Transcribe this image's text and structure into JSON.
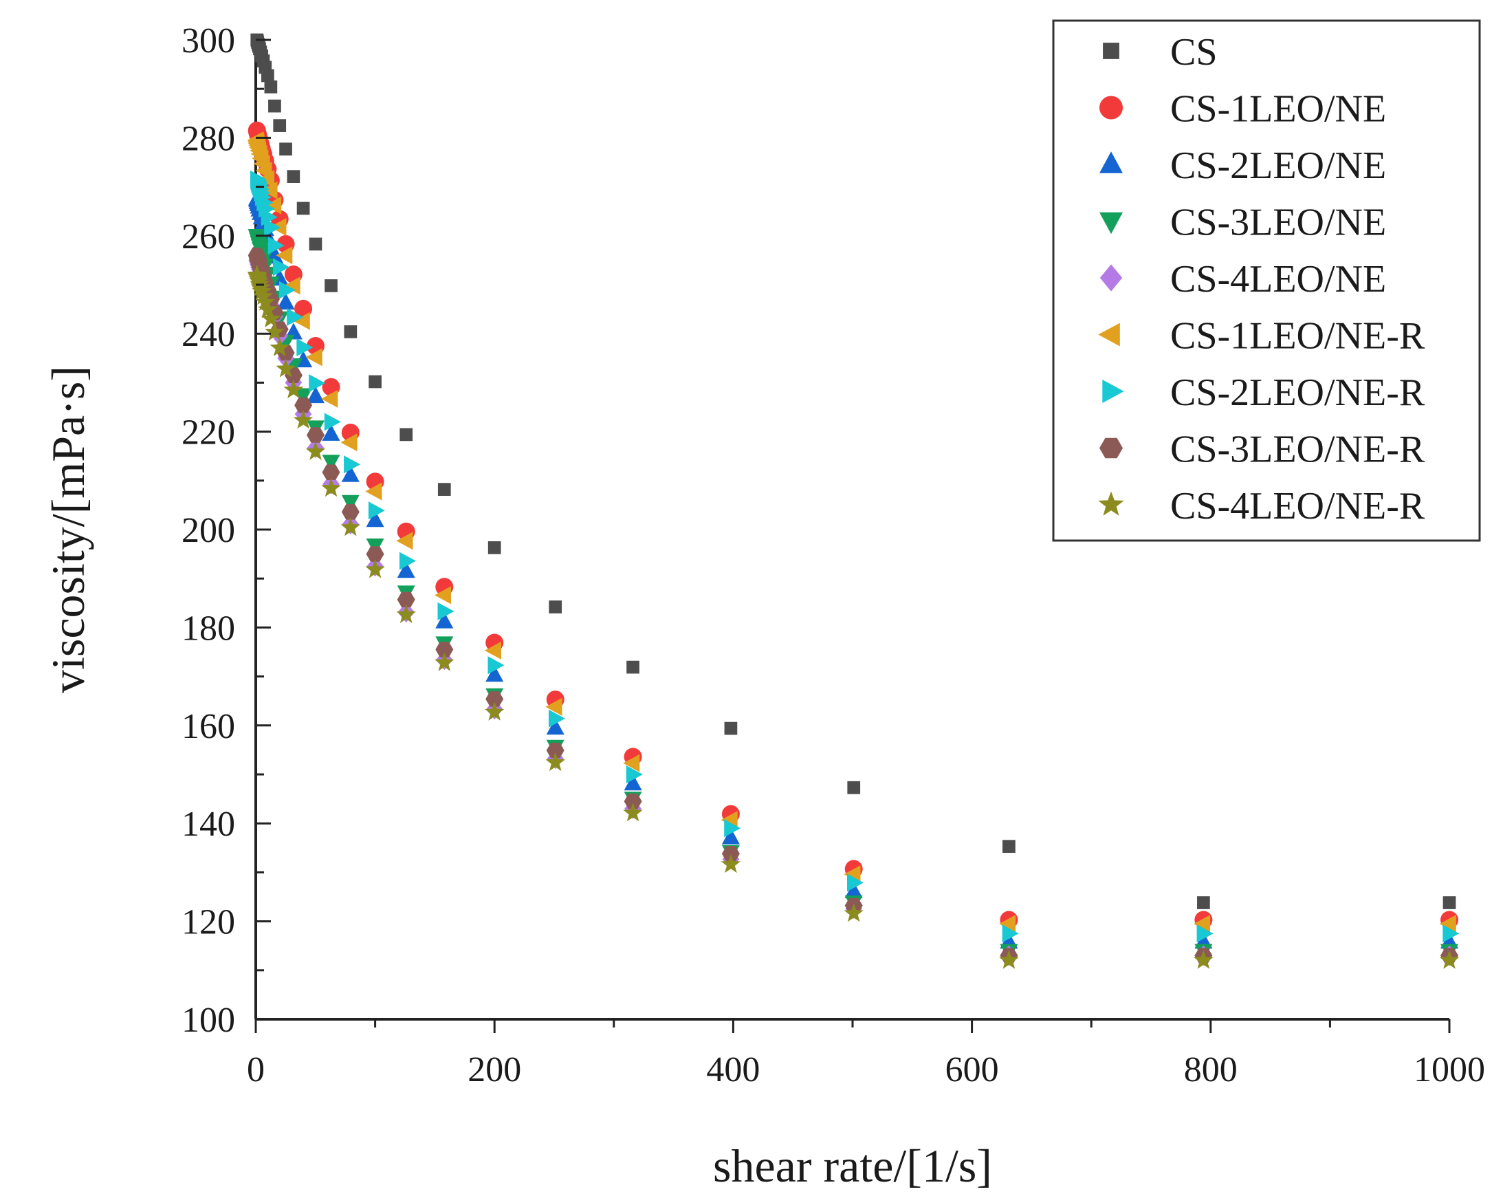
{
  "chart_data": {
    "type": "scatter",
    "title": "",
    "xlabel": "shear rate/[1/s]",
    "ylabel": "viscosity/[mPa·s]",
    "xlim": [
      0,
      1000
    ],
    "ylim": [
      100,
      300
    ],
    "x_ticks": [
      0,
      200,
      400,
      600,
      800,
      1000
    ],
    "y_ticks": [
      100,
      120,
      140,
      160,
      180,
      200,
      220,
      240,
      260,
      280,
      300
    ],
    "grid": false,
    "legend_position": "top-right",
    "x": [
      1,
      1.26,
      1.58,
      2,
      2.51,
      3.16,
      3.98,
      5.01,
      6.31,
      7.94,
      10,
      12.6,
      15.8,
      20,
      25.1,
      31.6,
      39.8,
      50.1,
      63.1,
      79.4,
      100,
      126,
      158,
      200,
      251,
      316,
      398,
      501,
      631,
      794,
      1000
    ],
    "series": [
      {
        "name": "CS",
        "marker": "square",
        "color": "#4d4d4d",
        "values": [
          300,
          299.8,
          299.5,
          299.1,
          298.7,
          298.2,
          297.5,
          296.7,
          295.7,
          294.4,
          292.7,
          290.4,
          286.5,
          282.5,
          277.7,
          272.1,
          265.6,
          258.3,
          249.8,
          240.4,
          230.2,
          219.4,
          208.2,
          196.3,
          184.2,
          171.9,
          159.4,
          147.3,
          135.3,
          123.8,
          123.8
        ]
      },
      {
        "name": "CS-1LEO/NE",
        "marker": "circle",
        "color": "#f23a3a",
        "values": [
          281.5,
          281.2,
          280.9,
          280.5,
          280,
          279.4,
          278.7,
          277.8,
          276.7,
          275.3,
          273.6,
          271.3,
          267.3,
          263.4,
          258.3,
          252.1,
          245.1,
          237.5,
          229.1,
          219.8,
          209.8,
          199.6,
          188.3,
          176.9,
          165.3,
          153.6,
          141.9,
          130.7,
          120.3,
          120.3,
          120.3
        ]
      },
      {
        "name": "CS-2LEO/NE",
        "marker": "triangle-up",
        "color": "#1464d2",
        "values": [
          267.5,
          267.2,
          266.8,
          266.4,
          265.9,
          265.3,
          264.6,
          263.7,
          262.6,
          261.3,
          259.6,
          257.5,
          255.7,
          251.2,
          246.3,
          240.2,
          234.5,
          227.2,
          219.5,
          211.1,
          201.9,
          191.5,
          181.2,
          170.3,
          159.5,
          148.1,
          137.1,
          126.1,
          115.8,
          115.8,
          115.8
        ]
      },
      {
        "name": "CS-3LEO/NE",
        "marker": "triangle-down",
        "color": "#12a05a",
        "values": [
          260,
          259.8,
          259.5,
          259.1,
          258.6,
          258,
          257.3,
          256.4,
          255.3,
          254,
          252.3,
          250.3,
          247.4,
          243.2,
          238.4,
          233.6,
          227.5,
          220.9,
          213.9,
          205.7,
          196.8,
          187.2,
          176.8,
          166.2,
          155.7,
          145.1,
          134.2,
          123.9,
          114,
          114,
          114
        ]
      },
      {
        "name": "CS-4LEO/NE",
        "marker": "diamond",
        "color": "#b47ae6",
        "values": [
          255,
          254.8,
          254.5,
          254.1,
          253.6,
          253.1,
          252.4,
          251.6,
          250.6,
          249.4,
          247.9,
          246,
          243.5,
          239.6,
          235,
          230,
          223.6,
          216.7,
          209.3,
          201.1,
          192.5,
          183.1,
          173.4,
          163.3,
          153.2,
          143,
          132.7,
          122.6,
          113,
          113,
          113
        ]
      },
      {
        "name": "CS-1LEO/NE-R",
        "marker": "triangle-left",
        "color": "#e1a01e",
        "values": [
          279.5,
          279.2,
          278.9,
          278.5,
          278,
          277.4,
          276.7,
          275.8,
          274.7,
          273.3,
          271.6,
          269.3,
          266.2,
          261.8,
          256,
          249.8,
          242.6,
          235.2,
          226.7,
          217.8,
          207.8,
          197.7,
          186.6,
          175.3,
          163.8,
          152.3,
          140.7,
          129.6,
          119.5,
          119.5,
          119.5
        ]
      },
      {
        "name": "CS-2LEO/NE-R",
        "marker": "triangle-right",
        "color": "#18c8d2",
        "values": [
          271.5,
          271.2,
          270.9,
          270.5,
          270.1,
          269.5,
          268.8,
          267.9,
          266.8,
          265.5,
          263.8,
          261.7,
          258,
          253.6,
          248.9,
          243.4,
          237.2,
          229.9,
          222,
          213.3,
          203.9,
          193.6,
          183.3,
          172.3,
          161.4,
          150,
          139,
          127.9,
          117.5,
          117.5,
          117.5
        ]
      },
      {
        "name": "CS-3LEO/NE-R",
        "marker": "hexagon",
        "color": "#8b5a55",
        "values": [
          256,
          255.8,
          255.5,
          255.1,
          254.7,
          254.1,
          253.5,
          252.7,
          251.7,
          250.4,
          248.9,
          247,
          244.3,
          240.9,
          236.1,
          231.5,
          225.4,
          219.3,
          211.7,
          203.6,
          195,
          185.7,
          175.5,
          165.4,
          154.9,
          144.5,
          133.8,
          123.2,
          113,
          113,
          113
        ]
      },
      {
        "name": "CS-4LEO/NE-R",
        "marker": "star",
        "color": "#8c8c1e",
        "values": [
          252,
          251.8,
          251.5,
          251.1,
          250.7,
          250.1,
          249.4,
          248.6,
          247.6,
          246.4,
          244.9,
          243,
          240.3,
          237.1,
          232.8,
          228.5,
          222.3,
          215.9,
          208.4,
          200.4,
          191.8,
          182.6,
          172.8,
          162.7,
          152.4,
          142.1,
          131.6,
          121.6,
          112,
          112,
          112
        ]
      }
    ]
  }
}
